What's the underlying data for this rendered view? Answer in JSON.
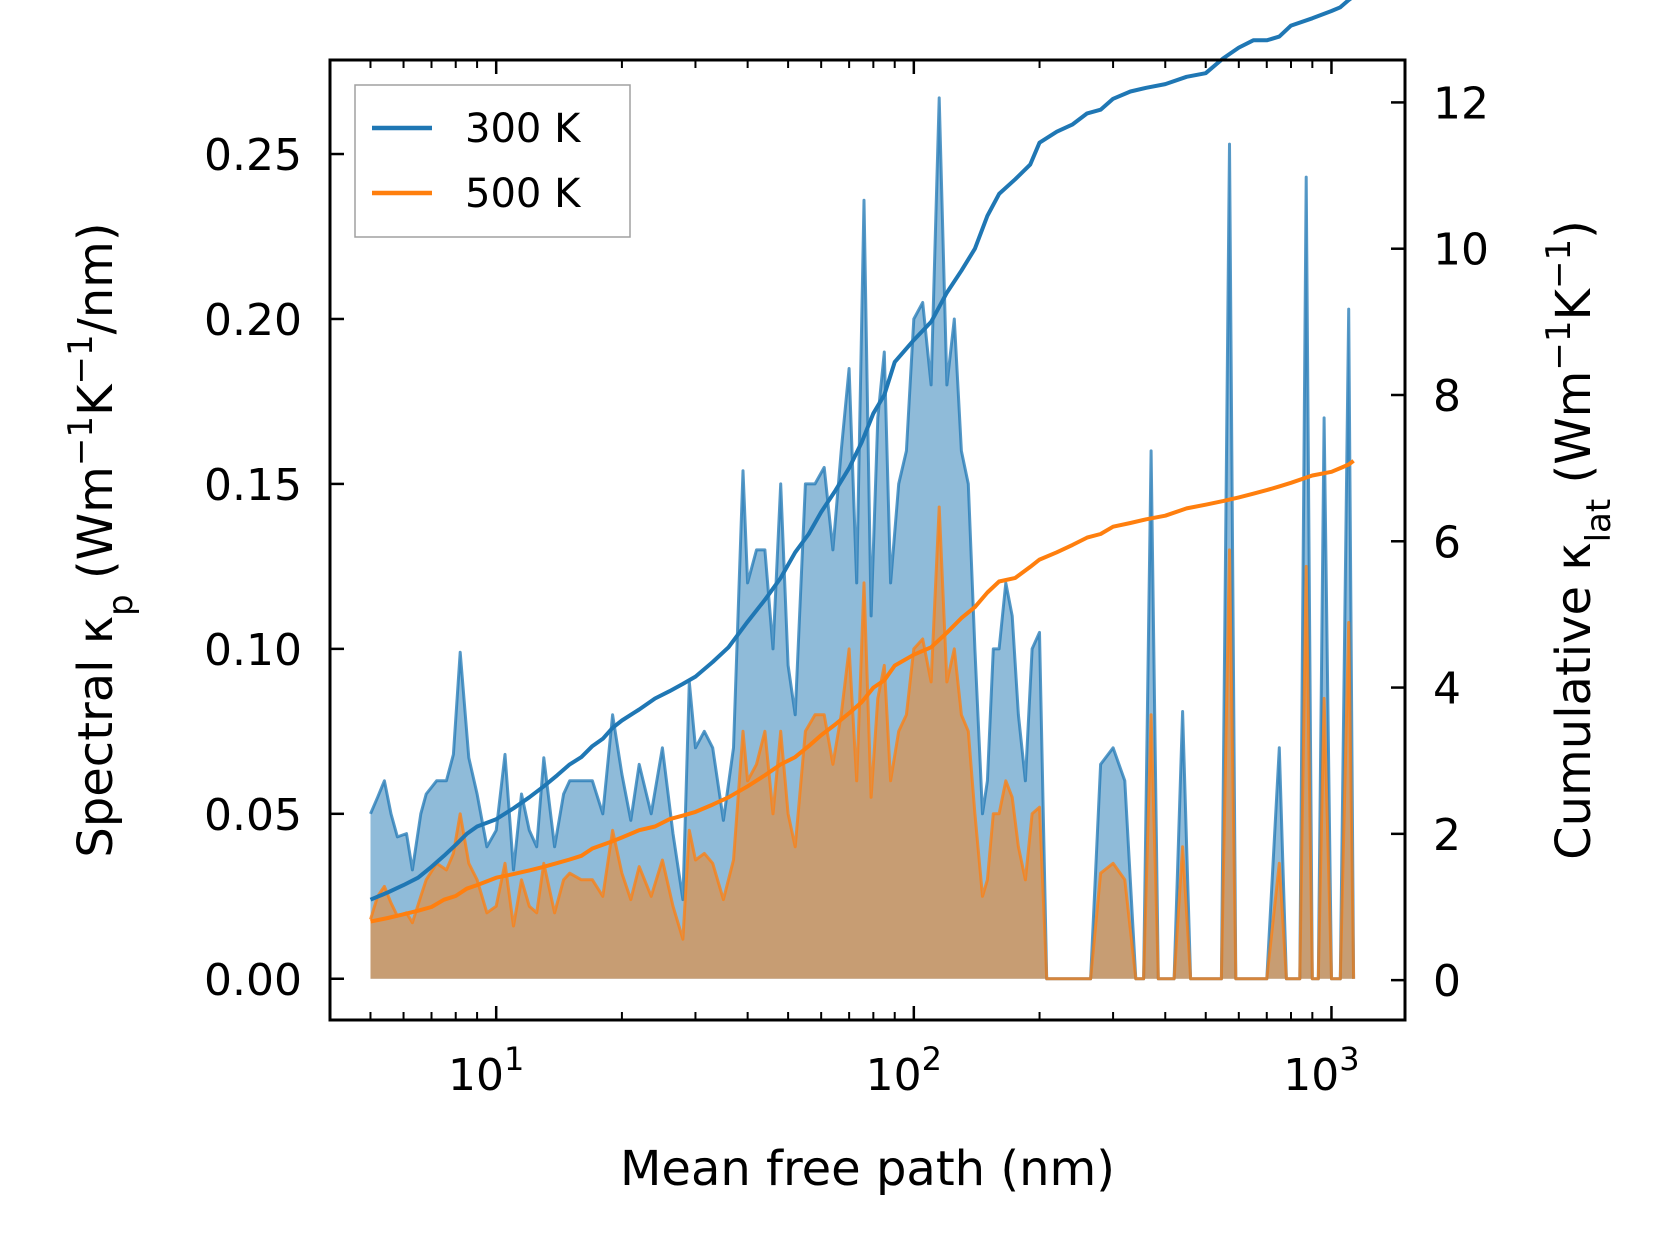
{
  "chart_data": {
    "type": "area",
    "xlabel": "Mean free path (nm)",
    "xscale": "log",
    "xlim": [
      4.0,
      1500
    ],
    "x_ticks": [
      {
        "value": 10,
        "mantissa": "10",
        "exponent": "1"
      },
      {
        "value": 100,
        "mantissa": "10",
        "exponent": "2"
      },
      {
        "value": 1000,
        "mantissa": "10",
        "exponent": "3"
      }
    ],
    "ylabel_left": {
      "main": "Spectral κ",
      "sub": "p",
      "units_open": " (Wm",
      "sup1": "−1",
      "mid": "K",
      "sup2": "−1",
      "close": "/nm)"
    },
    "ylabel_right": {
      "main": "Cumulative κ",
      "sub": "lat",
      "units_open": " (Wm",
      "sup1": "−1",
      "mid": "K",
      "sup2": "−1",
      "close": ")"
    },
    "ylim_left": [
      -0.0125,
      0.2785
    ],
    "ylim_right": [
      -0.545,
      12.58
    ],
    "y_ticks_left": [
      "0.00",
      "0.05",
      "0.10",
      "0.15",
      "0.20",
      "0.25"
    ],
    "y_ticks_right": [
      "0",
      "2",
      "4",
      "6",
      "8",
      "10",
      "12"
    ],
    "legend": {
      "position": "upper-left",
      "entries": [
        "300 K",
        "500 K"
      ]
    },
    "colors": {
      "300 K": "#1f77b4",
      "500 K": "#ff7f0e"
    },
    "series": [
      {
        "name": "300 K",
        "axis": "left",
        "kind": "spectral",
        "x": [
          5.0,
          5.2,
          5.4,
          5.6,
          5.8,
          6.1,
          6.3,
          6.6,
          6.8,
          7.2,
          7.6,
          7.9,
          8.2,
          8.6,
          9.0,
          9.5,
          10.0,
          10.5,
          11.0,
          11.5,
          12.0,
          12.5,
          13.0,
          13.8,
          14.5,
          15.0,
          16.0,
          17.0,
          18.0,
          19.0,
          20.0,
          21.0,
          22.0,
          23.5,
          25.0,
          26.5,
          28.0,
          29.0,
          30.0,
          31.5,
          33.0,
          35.0,
          37.0,
          39.0,
          40.0,
          42.0,
          44.0,
          46.0,
          48.0,
          50.0,
          52.0,
          55.0,
          58.0,
          61.0,
          64.0,
          67.0,
          70.0,
          73.0,
          76.0,
          79.0,
          82.0,
          85.0,
          88.0,
          92.0,
          96.0,
          100.0,
          105.0,
          110.0,
          115.0,
          120.0,
          125.0,
          130.0,
          135.0,
          140.0,
          146.0,
          150.0,
          155.0,
          160.0,
          166.0,
          172.0,
          178.0,
          185.0,
          192.0,
          200.0,
          208.0,
          216.0,
          225.0,
          235.0,
          245.0,
          255.0,
          265.0,
          280.0,
          300.0,
          320.0,
          340.0,
          355.0,
          370.0,
          385.0,
          400.0,
          420.0,
          440.0,
          460.0,
          480.0,
          500.0,
          520.0,
          545.0,
          570.0,
          590.0,
          620.0,
          650.0,
          700.0,
          750.0,
          780.0,
          810.0,
          840.0,
          870.0,
          900.0,
          930.0,
          960.0,
          1000.0,
          1050.0,
          1100.0,
          1130.0
        ],
        "values": [
          0.05,
          0.055,
          0.06,
          0.05,
          0.043,
          0.044,
          0.033,
          0.05,
          0.056,
          0.06,
          0.06,
          0.068,
          0.099,
          0.067,
          0.056,
          0.04,
          0.045,
          0.068,
          0.033,
          0.056,
          0.045,
          0.04,
          0.067,
          0.04,
          0.056,
          0.06,
          0.06,
          0.06,
          0.05,
          0.08,
          0.062,
          0.048,
          0.065,
          0.05,
          0.07,
          0.044,
          0.024,
          0.09,
          0.07,
          0.075,
          0.07,
          0.048,
          0.07,
          0.154,
          0.12,
          0.13,
          0.13,
          0.1,
          0.15,
          0.095,
          0.08,
          0.15,
          0.15,
          0.155,
          0.13,
          0.16,
          0.185,
          0.12,
          0.236,
          0.11,
          0.17,
          0.19,
          0.12,
          0.15,
          0.16,
          0.2,
          0.205,
          0.18,
          0.267,
          0.18,
          0.2,
          0.16,
          0.15,
          0.1,
          0.05,
          0.06,
          0.1,
          0.1,
          0.12,
          0.11,
          0.08,
          0.06,
          0.1,
          0.105,
          0.0,
          0.0,
          0.0,
          0.0,
          0.0,
          0.0,
          0.0,
          0.065,
          0.07,
          0.06,
          0.0,
          0.0,
          0.16,
          0.0,
          0.0,
          0.0,
          0.081,
          0.0,
          0.0,
          0.0,
          0.0,
          0.0,
          0.253,
          0.0,
          0.0,
          0.0,
          0.0,
          0.07,
          0.0,
          0.0,
          0.0,
          0.243,
          0.0,
          0.0,
          0.17,
          0.0,
          0.0,
          0.203,
          0.0
        ]
      },
      {
        "name": "500 K",
        "axis": "left",
        "kind": "spectral",
        "x": [
          5.0,
          5.2,
          5.4,
          5.6,
          5.8,
          6.1,
          6.3,
          6.6,
          6.8,
          7.2,
          7.6,
          7.9,
          8.2,
          8.6,
          9.0,
          9.5,
          10.0,
          10.5,
          11.0,
          11.5,
          12.0,
          12.5,
          13.0,
          13.8,
          14.5,
          15.0,
          16.0,
          17.0,
          18.0,
          19.0,
          20.0,
          21.0,
          22.0,
          23.5,
          25.0,
          26.5,
          28.0,
          29.0,
          30.0,
          31.5,
          33.0,
          35.0,
          37.0,
          39.0,
          40.0,
          42.0,
          44.0,
          46.0,
          48.0,
          50.0,
          52.0,
          55.0,
          58.0,
          61.0,
          64.0,
          67.0,
          70.0,
          73.0,
          76.0,
          79.0,
          82.0,
          85.0,
          88.0,
          92.0,
          96.0,
          100.0,
          105.0,
          110.0,
          115.0,
          120.0,
          125.0,
          130.0,
          135.0,
          140.0,
          146.0,
          150.0,
          155.0,
          160.0,
          166.0,
          172.0,
          178.0,
          185.0,
          192.0,
          200.0,
          208.0,
          216.0,
          225.0,
          235.0,
          245.0,
          255.0,
          265.0,
          280.0,
          300.0,
          320.0,
          340.0,
          355.0,
          370.0,
          385.0,
          400.0,
          420.0,
          440.0,
          460.0,
          480.0,
          500.0,
          520.0,
          545.0,
          570.0,
          590.0,
          620.0,
          650.0,
          700.0,
          750.0,
          780.0,
          810.0,
          840.0,
          870.0,
          900.0,
          930.0,
          960.0,
          1000.0,
          1050.0,
          1100.0,
          1130.0
        ],
        "values": [
          0.018,
          0.025,
          0.028,
          0.023,
          0.019,
          0.02,
          0.017,
          0.025,
          0.03,
          0.035,
          0.033,
          0.038,
          0.05,
          0.035,
          0.03,
          0.02,
          0.022,
          0.035,
          0.016,
          0.03,
          0.022,
          0.02,
          0.035,
          0.02,
          0.03,
          0.032,
          0.03,
          0.03,
          0.025,
          0.045,
          0.032,
          0.024,
          0.034,
          0.025,
          0.036,
          0.022,
          0.012,
          0.045,
          0.036,
          0.038,
          0.035,
          0.024,
          0.036,
          0.075,
          0.06,
          0.065,
          0.075,
          0.05,
          0.075,
          0.05,
          0.04,
          0.075,
          0.08,
          0.08,
          0.065,
          0.08,
          0.1,
          0.06,
          0.12,
          0.055,
          0.085,
          0.095,
          0.06,
          0.075,
          0.08,
          0.1,
          0.103,
          0.09,
          0.143,
          0.09,
          0.1,
          0.08,
          0.075,
          0.05,
          0.025,
          0.03,
          0.05,
          0.05,
          0.06,
          0.055,
          0.04,
          0.03,
          0.05,
          0.052,
          0.0,
          0.0,
          0.0,
          0.0,
          0.0,
          0.0,
          0.0,
          0.032,
          0.035,
          0.03,
          0.0,
          0.0,
          0.08,
          0.0,
          0.0,
          0.0,
          0.04,
          0.0,
          0.0,
          0.0,
          0.0,
          0.0,
          0.13,
          0.0,
          0.0,
          0.0,
          0.0,
          0.035,
          0.0,
          0.0,
          0.0,
          0.125,
          0.0,
          0.0,
          0.085,
          0.0,
          0.0,
          0.108,
          0.0
        ]
      },
      {
        "name": "300 K",
        "axis": "right",
        "kind": "cumulative",
        "x": [
          5.0,
          5.5,
          6.0,
          6.5,
          7.0,
          7.5,
          8.0,
          8.5,
          9.0,
          10.0,
          11.0,
          12.0,
          13.0,
          14.0,
          15.0,
          16.0,
          17.0,
          18.0,
          19.0,
          20.0,
          22.0,
          24.0,
          26.0,
          28.0,
          30.0,
          33.0,
          36.0,
          40.0,
          44.0,
          48.0,
          52.0,
          56.0,
          60.0,
          65.0,
          70.0,
          75.0,
          80.0,
          85.0,
          90.0,
          100.0,
          110.0,
          120.0,
          130.0,
          140.0,
          150.0,
          160.0,
          175.0,
          190.0,
          200.0,
          220.0,
          240.0,
          260.0,
          280.0,
          300.0,
          330.0,
          360.0,
          400.0,
          450.0,
          500.0,
          550.0,
          600.0,
          650.0,
          700.0,
          750.0,
          800.0,
          900.0,
          1000.0,
          1050.0,
          1100.0,
          1130.0
        ],
        "values": [
          1.1,
          1.2,
          1.3,
          1.4,
          1.55,
          1.7,
          1.85,
          2.0,
          2.1,
          2.2,
          2.35,
          2.5,
          2.65,
          2.8,
          2.95,
          3.05,
          3.2,
          3.3,
          3.45,
          3.55,
          3.7,
          3.85,
          3.95,
          4.05,
          4.15,
          4.35,
          4.55,
          4.9,
          5.2,
          5.5,
          5.85,
          6.1,
          6.4,
          6.7,
          7.0,
          7.35,
          7.75,
          8.0,
          8.45,
          8.75,
          9.0,
          9.4,
          9.7,
          10.0,
          10.45,
          10.75,
          10.95,
          11.15,
          11.45,
          11.6,
          11.7,
          11.85,
          11.9,
          12.05,
          12.15,
          12.2,
          12.25,
          12.35,
          12.4,
          12.6,
          12.75,
          12.85,
          12.85,
          12.9,
          13.05,
          13.15,
          13.25,
          13.3,
          13.4,
          13.45
        ]
      },
      {
        "name": "500 K",
        "axis": "right",
        "kind": "cumulative",
        "x": [
          5.0,
          5.5,
          6.0,
          6.5,
          7.0,
          7.5,
          8.0,
          8.5,
          9.0,
          10.0,
          11.0,
          12.0,
          13.0,
          14.0,
          15.0,
          16.0,
          17.0,
          18.0,
          19.0,
          20.0,
          22.0,
          24.0,
          26.0,
          28.0,
          30.0,
          33.0,
          36.0,
          40.0,
          44.0,
          48.0,
          52.0,
          56.0,
          60.0,
          65.0,
          70.0,
          75.0,
          80.0,
          85.0,
          90.0,
          100.0,
          110.0,
          120.0,
          130.0,
          140.0,
          150.0,
          160.0,
          175.0,
          190.0,
          200.0,
          220.0,
          240.0,
          260.0,
          280.0,
          300.0,
          330.0,
          360.0,
          400.0,
          450.0,
          500.0,
          550.0,
          600.0,
          650.0,
          700.0,
          750.0,
          800.0,
          900.0,
          1000.0,
          1050.0,
          1100.0,
          1130.0
        ],
        "values": [
          0.8,
          0.85,
          0.9,
          0.95,
          1.0,
          1.1,
          1.15,
          1.25,
          1.3,
          1.4,
          1.45,
          1.5,
          1.55,
          1.6,
          1.65,
          1.7,
          1.8,
          1.85,
          1.9,
          1.95,
          2.05,
          2.1,
          2.2,
          2.25,
          2.3,
          2.4,
          2.5,
          2.65,
          2.8,
          2.95,
          3.05,
          3.2,
          3.35,
          3.5,
          3.65,
          3.8,
          4.0,
          4.1,
          4.3,
          4.45,
          4.55,
          4.75,
          4.95,
          5.1,
          5.3,
          5.45,
          5.5,
          5.65,
          5.75,
          5.85,
          5.95,
          6.05,
          6.1,
          6.2,
          6.25,
          6.3,
          6.35,
          6.45,
          6.5,
          6.55,
          6.6,
          6.65,
          6.7,
          6.75,
          6.8,
          6.9,
          6.95,
          7.0,
          7.05,
          7.1
        ]
      }
    ]
  }
}
